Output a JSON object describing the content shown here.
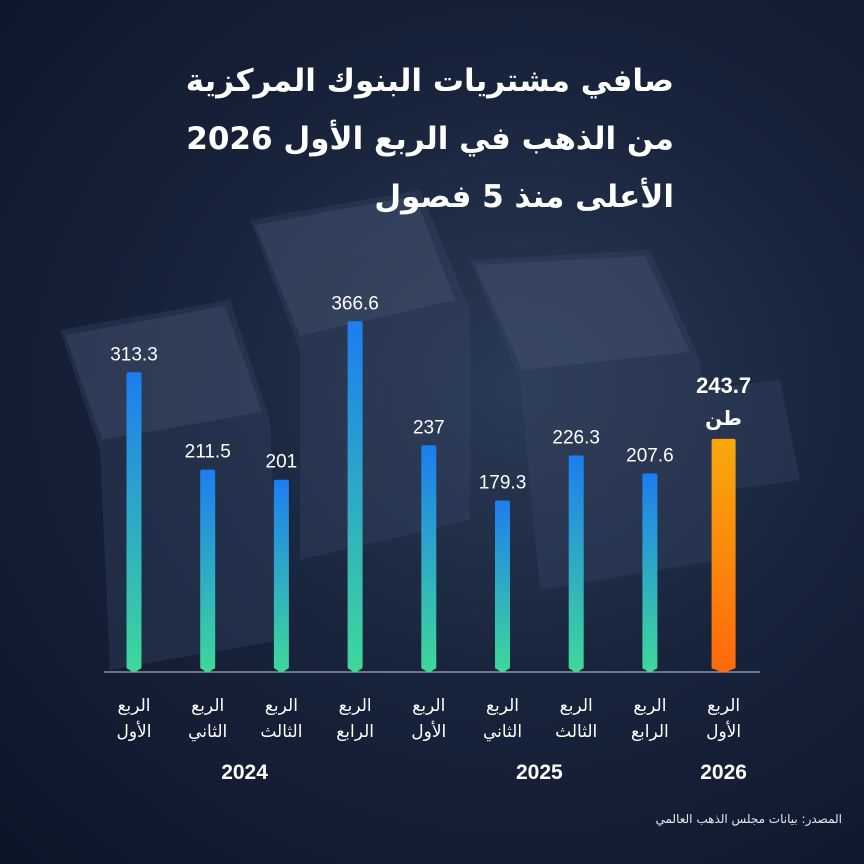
{
  "title_lines": [
    "صافي مشتريات البنوك المركزية",
    "من الذهب في الربع الأول 2026",
    "الأعلى منذ 5 فصول"
  ],
  "source": "المصدر: بيانات مجلس الذهب العالمي",
  "colors": {
    "bar_top": "#1d7df0",
    "bar_bottom": "#3ed79a",
    "highlight_top": "#f7a80c",
    "highlight_bottom": "#ff6a0a",
    "background": "#18243c"
  },
  "chart_data": {
    "type": "bar",
    "title": "صافي مشتريات البنوك المركزية من الذهب في الربع الأول 2026 الأعلى منذ 5 فصول",
    "unit": "طن",
    "categories": [
      [
        "الربع",
        "الأول"
      ],
      [
        "الربع",
        "الثاني"
      ],
      [
        "الربع",
        "الثالث"
      ],
      [
        "الربع",
        "الرابع"
      ],
      [
        "الربع",
        "الأول"
      ],
      [
        "الربع",
        "الثاني"
      ],
      [
        "الربع",
        "الثالث"
      ],
      [
        "الربع",
        "الرابع"
      ],
      [
        "الربع",
        "الأول"
      ]
    ],
    "values": [
      313.3,
      211.5,
      201,
      366.6,
      237,
      179.3,
      226.3,
      207.6,
      243.7
    ],
    "value_labels": [
      "313.3",
      "211.5",
      "201",
      "366.6",
      "237",
      "179.3",
      "226.3",
      "207.6",
      "243.7"
    ],
    "years": [
      {
        "label": "2024",
        "from": 0,
        "to": 3
      },
      {
        "label": "2025",
        "from": 4,
        "to": 7
      },
      {
        "label": "2026",
        "from": 8,
        "to": 8
      }
    ],
    "highlight_index": 8,
    "ylim": [
      0,
      400
    ],
    "grid": false
  }
}
